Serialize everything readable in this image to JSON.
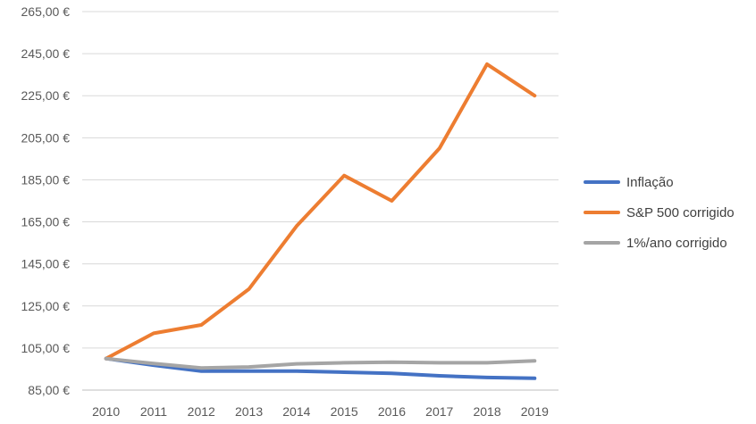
{
  "chart_data": {
    "type": "line",
    "categories": [
      "2010",
      "2011",
      "2012",
      "2013",
      "2014",
      "2015",
      "2016",
      "2017",
      "2018",
      "2019"
    ],
    "series": [
      {
        "name": "Inflação",
        "color": "#4472C4",
        "values": [
          100.0,
          96.8,
          94.0,
          94.0,
          94.0,
          93.5,
          93.0,
          91.8,
          91.0,
          90.6
        ]
      },
      {
        "name": "S&P 500 corrigido",
        "color": "#ED7D31",
        "values": [
          100.0,
          112.0,
          116.0,
          133.0,
          163.0,
          187.0,
          175.0,
          200.0,
          240.0,
          225.0
        ]
      },
      {
        "name": "1%/ano corrigido",
        "color": "#A5A5A5",
        "values": [
          100.0,
          97.6,
          95.5,
          96.0,
          97.5,
          98.0,
          98.3,
          98.0,
          98.0,
          98.9
        ]
      }
    ],
    "y_ticks": [
      "85,00 €",
      "105,00 €",
      "125,00 €",
      "145,00 €",
      "165,00 €",
      "185,00 €",
      "205,00 €",
      "225,00 €",
      "245,00 €",
      "265,00 €"
    ],
    "ylim": [
      85,
      265
    ],
    "y_step": 20,
    "grid": true,
    "legend_position": "right"
  }
}
